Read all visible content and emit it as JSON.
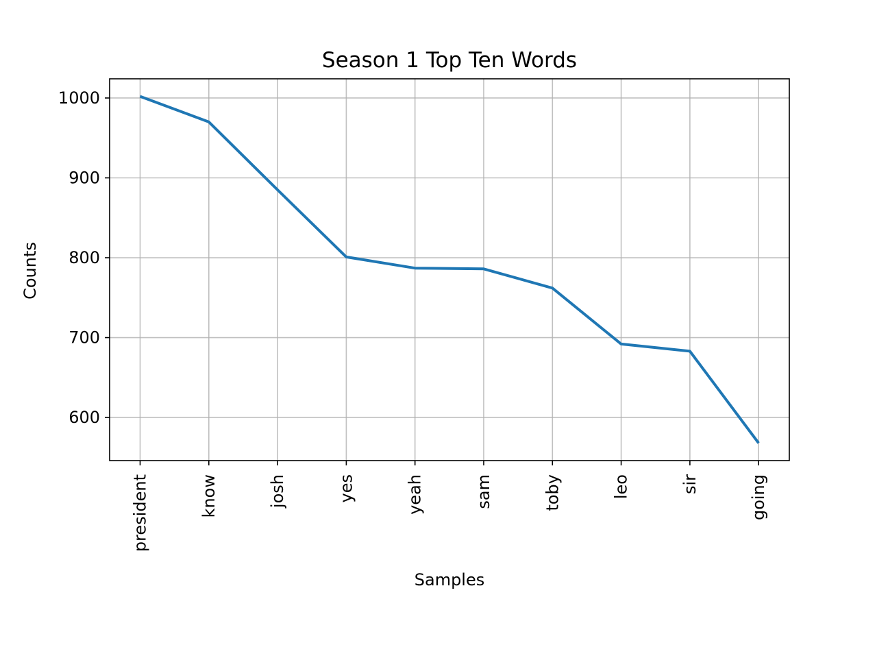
{
  "chart_data": {
    "type": "line",
    "title": "Season 1 Top Ten Words",
    "xlabel": "Samples",
    "ylabel": "Counts",
    "categories": [
      "president",
      "know",
      "josh",
      "yes",
      "yeah",
      "sam",
      "toby",
      "leo",
      "sir",
      "going"
    ],
    "series": [
      {
        "values": [
          1002,
          970,
          885,
          801,
          787,
          786,
          762,
          692,
          683,
          568
        ]
      }
    ],
    "yticks": [
      600,
      700,
      800,
      900,
      1000
    ],
    "ylim": [
      546,
      1024
    ],
    "grid": true,
    "line_color": "#1f77b4"
  }
}
